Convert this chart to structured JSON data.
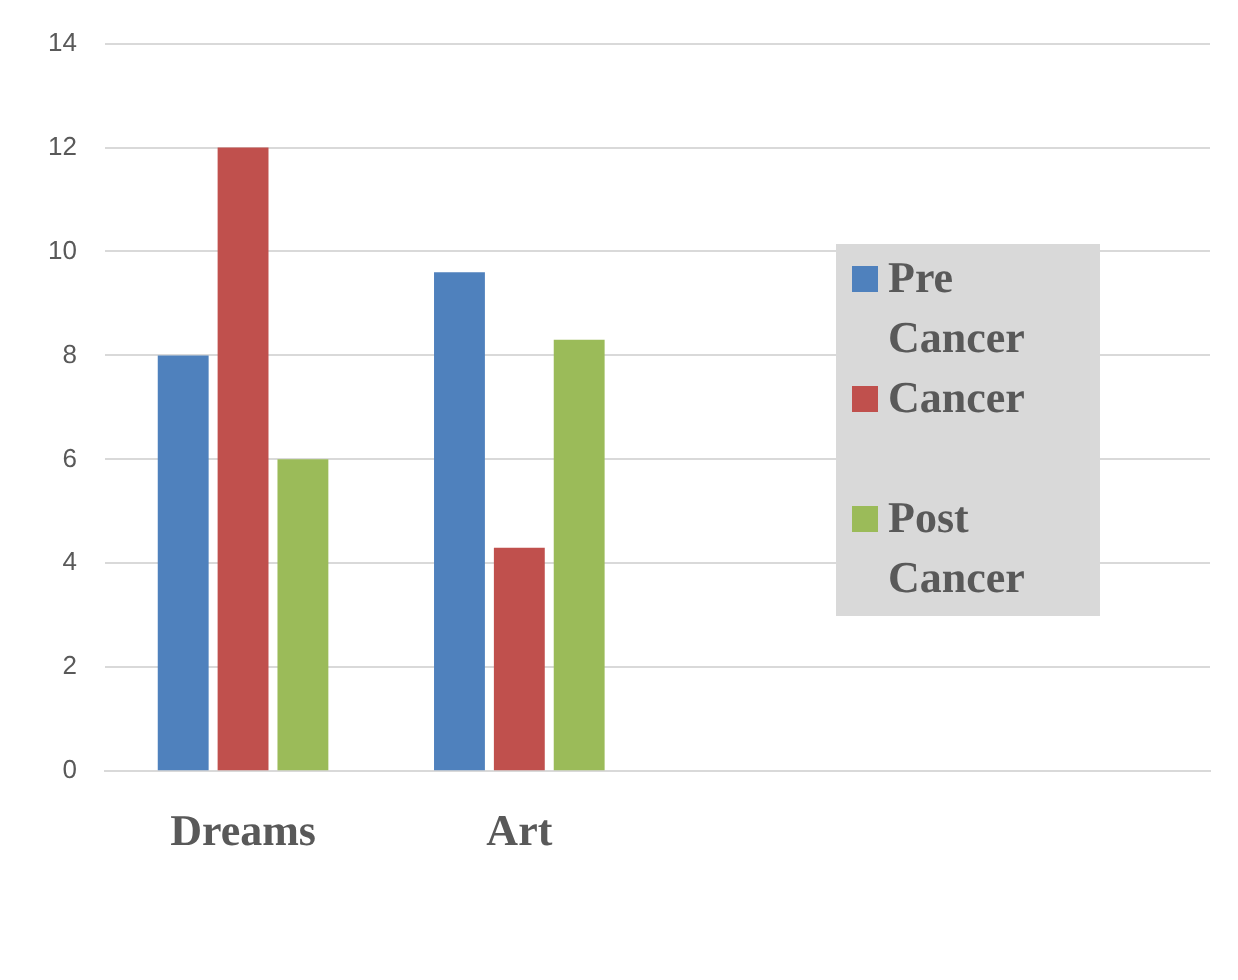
{
  "chart_data": {
    "type": "bar",
    "categories": [
      "Dreams",
      "Art",
      null,
      null
    ],
    "series": [
      {
        "name": "Pre Cancer",
        "color": "#4f81bd",
        "values": [
          8,
          9.6,
          null,
          null
        ]
      },
      {
        "name": "Cancer",
        "color": "#c0504d",
        "values": [
          12,
          4.3,
          null,
          null
        ]
      },
      {
        "name": "Post Cancer",
        "color": "#9bbb59",
        "values": [
          6,
          8.3,
          null,
          null
        ]
      }
    ],
    "ylim": [
      0,
      14
    ],
    "yticks": [
      0,
      2,
      4,
      6,
      8,
      10,
      12,
      14
    ],
    "grid": "y",
    "legend": "right"
  }
}
